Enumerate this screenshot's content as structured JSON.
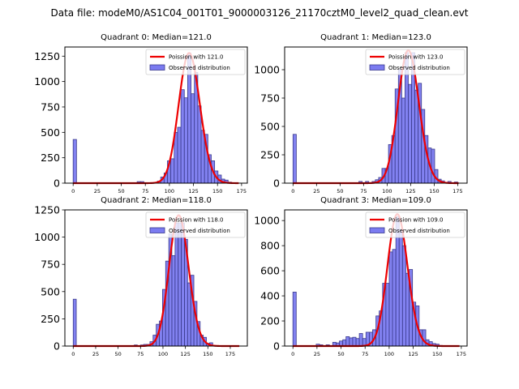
{
  "suptitle": "Data file: modeM0/AS1C04_001T01_9000003126_21170cztM0_level2_quad_clean.evt",
  "style": {
    "bar_fill": "#7b7bf0",
    "bar_edge": "#3a3a8c",
    "curve_color": "#ee0000",
    "axis_color": "#000000"
  },
  "chart_data": [
    {
      "type": "bar",
      "title": "Quadrant 0: Median=121.0",
      "xlim": [
        -8.6,
        181
      ],
      "ylim": [
        0,
        1340
      ],
      "xticks": [
        0,
        25,
        50,
        75,
        100,
        125,
        150,
        175
      ],
      "yticks": [
        0,
        250,
        500,
        750,
        1000,
        1250
      ],
      "bin_width": 3.5,
      "legend": {
        "placement": "upper-right",
        "entries": [
          "Poission with 121.0",
          "Observed distribution"
        ]
      },
      "poisson_mean": 121.0,
      "poisson_peak": 1280,
      "curve_range": [
        0,
        172
      ],
      "bins": [
        [
          0,
          430
        ],
        [
          66.5,
          15
        ],
        [
          70,
          15
        ],
        [
          84,
          8
        ],
        [
          87.5,
          20
        ],
        [
          91,
          60
        ],
        [
          94.5,
          100
        ],
        [
          98,
          220
        ],
        [
          101.5,
          240
        ],
        [
          105,
          500
        ],
        [
          108.5,
          550
        ],
        [
          112,
          920
        ],
        [
          115.5,
          840
        ],
        [
          119,
          1280
        ],
        [
          122.5,
          880
        ],
        [
          126,
          1090
        ],
        [
          129.5,
          760
        ],
        [
          133,
          520
        ],
        [
          136.5,
          480
        ],
        [
          140,
          280
        ],
        [
          143.5,
          220
        ],
        [
          147,
          120
        ],
        [
          150.5,
          80
        ],
        [
          154,
          40
        ],
        [
          157.5,
          30
        ],
        [
          161,
          10
        ],
        [
          164.5,
          5
        ]
      ]
    },
    {
      "type": "bar",
      "title": "Quadrant 1: Median=123.0",
      "xlim": [
        -8.9,
        185
      ],
      "ylim": [
        0,
        1200
      ],
      "xticks": [
        0,
        25,
        50,
        75,
        100,
        125,
        150,
        175
      ],
      "yticks": [
        0,
        250,
        500,
        750,
        1000
      ],
      "bin_width": 3.5,
      "legend": {
        "placement": "upper-right",
        "entries": [
          "Poission with 123.0",
          "Observed distribution"
        ]
      },
      "poisson_mean": 123.0,
      "poisson_peak": 1170,
      "curve_range": [
        0,
        176
      ],
      "bins": [
        [
          0,
          430
        ],
        [
          70,
          15
        ],
        [
          77,
          15
        ],
        [
          84,
          15
        ],
        [
          87.5,
          30
        ],
        [
          91,
          50
        ],
        [
          94.5,
          130
        ],
        [
          98,
          130
        ],
        [
          101.5,
          340
        ],
        [
          105,
          420
        ],
        [
          108.5,
          830
        ],
        [
          112,
          1000
        ],
        [
          115.5,
          750
        ],
        [
          119,
          1150
        ],
        [
          122.5,
          870
        ],
        [
          126,
          1150
        ],
        [
          129.5,
          820
        ],
        [
          133,
          880
        ],
        [
          136.5,
          650
        ],
        [
          140,
          420
        ],
        [
          143.5,
          310
        ],
        [
          147,
          300
        ],
        [
          150.5,
          120
        ],
        [
          154,
          35
        ],
        [
          157.5,
          20
        ],
        [
          164.5,
          15
        ],
        [
          171.5,
          10
        ]
      ]
    },
    {
      "type": "bar",
      "title": "Quadrant 2: Median=118.0",
      "xlim": [
        -9.3,
        194
      ],
      "ylim": [
        0,
        1250
      ],
      "xticks": [
        0,
        25,
        50,
        75,
        100,
        125,
        150,
        175
      ],
      "yticks": [
        0,
        250,
        500,
        750,
        1000,
        1250
      ],
      "bin_width": 3.4,
      "legend": {
        "placement": "upper-right",
        "entries": [
          "Poission with 118.0",
          "Observed distribution"
        ]
      },
      "poisson_mean": 118.0,
      "poisson_peak": 1200,
      "curve_range": [
        0,
        185
      ],
      "bins": [
        [
          0,
          430
        ],
        [
          68,
          10
        ],
        [
          75,
          10
        ],
        [
          78.5,
          15
        ],
        [
          82,
          15
        ],
        [
          85.5,
          40
        ],
        [
          89,
          100
        ],
        [
          92.5,
          200
        ],
        [
          96,
          230
        ],
        [
          99.5,
          520
        ],
        [
          103,
          780
        ],
        [
          106.5,
          1030
        ],
        [
          110,
          830
        ],
        [
          113.5,
          1130
        ],
        [
          117,
          1130
        ],
        [
          120.5,
          1130
        ],
        [
          124,
          980
        ],
        [
          127.5,
          580
        ],
        [
          131,
          650
        ],
        [
          134.5,
          410
        ],
        [
          138,
          225
        ],
        [
          141.5,
          100
        ],
        [
          145,
          80
        ],
        [
          148.5,
          25
        ],
        [
          152,
          30
        ],
        [
          155.5,
          5
        ]
      ]
    },
    {
      "type": "bar",
      "title": "Quadrant 3: Median=109.0",
      "xlim": [
        -8.6,
        181
      ],
      "ylim": [
        0,
        1085
      ],
      "xticks": [
        0,
        25,
        50,
        75,
        100,
        125,
        150,
        175
      ],
      "yticks": [
        0,
        200,
        400,
        600,
        800,
        1000
      ],
      "bin_width": 3.45,
      "legend": {
        "placement": "upper-right",
        "entries": [
          "Poission with 109.0",
          "Observed distribution"
        ]
      },
      "poisson_mean": 109.0,
      "poisson_peak": 1050,
      "curve_range": [
        0,
        173
      ],
      "bins": [
        [
          0,
          430
        ],
        [
          24.2,
          15
        ],
        [
          27.6,
          10
        ],
        [
          34.5,
          10
        ],
        [
          41.4,
          30
        ],
        [
          44.9,
          25
        ],
        [
          48.3,
          40
        ],
        [
          51.8,
          50
        ],
        [
          55.2,
          75
        ],
        [
          58.7,
          65
        ],
        [
          62.1,
          70
        ],
        [
          65.6,
          60
        ],
        [
          69,
          100
        ],
        [
          72.5,
          60
        ],
        [
          75.9,
          110
        ],
        [
          79.4,
          110
        ],
        [
          82.8,
          130
        ],
        [
          86.3,
          240
        ],
        [
          89.7,
          280
        ],
        [
          93.2,
          500
        ],
        [
          96.6,
          500
        ],
        [
          100.1,
          750
        ],
        [
          103.5,
          770
        ],
        [
          107,
          1030
        ],
        [
          110.4,
          930
        ],
        [
          113.9,
          800
        ],
        [
          117.3,
          580
        ],
        [
          120.8,
          610
        ],
        [
          124.2,
          350
        ],
        [
          127.7,
          320
        ],
        [
          131.1,
          130
        ],
        [
          134.6,
          130
        ],
        [
          138,
          50
        ],
        [
          141.5,
          35
        ],
        [
          144.9,
          20
        ],
        [
          148.4,
          15
        ],
        [
          151.8,
          5
        ]
      ]
    }
  ]
}
